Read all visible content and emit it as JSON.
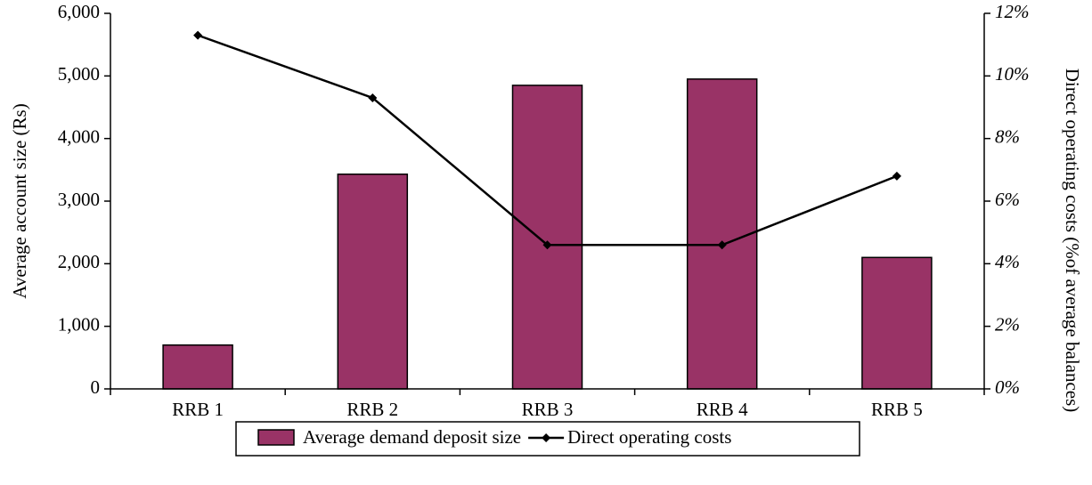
{
  "chart_data": {
    "type": "bar_line",
    "categories": [
      "RRB 1",
      "RRB 2",
      "RRB 3",
      "RRB 4",
      "RRB 5"
    ],
    "y_label": "Average account size (Rs)",
    "y2_label": "Direct operating costs (%of average balances)",
    "series": [
      {
        "name": "Average demand deposit size",
        "type": "bar",
        "color": "#993366",
        "values": [
          700,
          3430,
          4850,
          4950,
          2100
        ]
      },
      {
        "name": "Direct operating costs",
        "type": "line",
        "axis": "y2",
        "color": "#000000",
        "values": [
          11.3,
          9.3,
          4.6,
          4.6,
          6.8
        ]
      }
    ],
    "ylim": [
      0,
      6000
    ],
    "yticks": [
      0,
      {
        "value": 1000,
        "label": "1,000"
      },
      {
        "value": 2000,
        "label": "2,000"
      },
      {
        "value": 3000,
        "label": "3,000"
      },
      {
        "value": 4000,
        "label": "4,000"
      },
      {
        "value": 5000,
        "label": "5,000"
      },
      {
        "value": 6000,
        "label": "6,000"
      }
    ],
    "y2lim": [
      0,
      12
    ],
    "y2ticks": [
      {
        "value": 0,
        "label": "0%"
      },
      {
        "value": 2,
        "label": "2%"
      },
      {
        "value": 4,
        "label": "4%"
      },
      {
        "value": 6,
        "label": "6%"
      },
      {
        "value": 8,
        "label": "8%"
      },
      {
        "value": 10,
        "label": "10%"
      },
      {
        "value": 12,
        "label": "12%"
      }
    ],
    "legend": "bottom"
  }
}
